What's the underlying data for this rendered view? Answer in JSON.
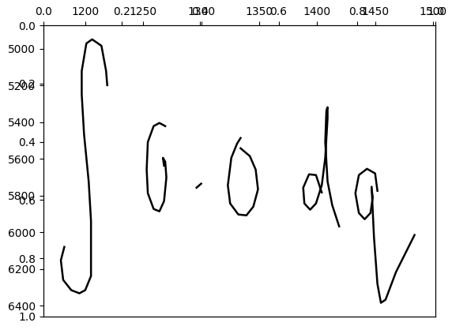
{
  "chart_data": [
    {
      "type": "line",
      "color": "#000000",
      "xlim": [
        1164,
        1502
      ],
      "ylim": [
        6460,
        4871
      ],
      "xticks": [
        1200,
        1250,
        1300,
        1350,
        1400,
        1450,
        1500
      ],
      "yticks": [
        5000,
        5200,
        5400,
        5600,
        5800,
        6000,
        6200,
        6400
      ],
      "series": [
        {
          "x": [
            1219,
            1218,
            1214,
            1206,
            1201,
            1197,
            1197,
            1199,
            1203,
            1205,
            1205,
            1205,
            1200,
            1195,
            1188,
            1181,
            1179,
            1182
          ],
          "values": [
            5198,
            5120,
            4983,
            4948,
            4970,
            5120,
            5249,
            5465,
            5723,
            5938,
            6110,
            6239,
            6316,
            6333,
            6316,
            6260,
            6153,
            6080
          ]
        },
        {
          "x": [
            1269,
            1264,
            1259,
            1254,
            1253,
            1254,
            1259,
            1264,
            1268,
            1270,
            1269,
            1267,
            1268
          ],
          "values": [
            5421,
            5404,
            5421,
            5508,
            5658,
            5787,
            5873,
            5886,
            5830,
            5701,
            5615,
            5594,
            5637
          ]
        },
        {
          "x": [
            1296,
            1300
          ],
          "values": [
            5757,
            5735
          ]
        },
        {
          "x": [
            1334,
            1331,
            1326,
            1323,
            1325,
            1332,
            1339,
            1345,
            1349,
            1347,
            1342,
            1334
          ],
          "values": [
            5486,
            5516,
            5594,
            5744,
            5843,
            5903,
            5908,
            5860,
            5766,
            5658,
            5585,
            5542
          ]
        },
        {
          "x": [
            1404,
            1399,
            1393,
            1388,
            1389,
            1394,
            1399,
            1404,
            1407,
            1409,
            1409,
            1408,
            1407,
            1409,
            1413,
            1419
          ],
          "values": [
            5783,
            5688,
            5684,
            5757,
            5843,
            5877,
            5843,
            5744,
            5594,
            5378,
            5318,
            5335,
            5508,
            5723,
            5852,
            5968
          ]
        },
        {
          "x": [
            1452,
            1450,
            1443,
            1436,
            1433,
            1436,
            1441,
            1446,
            1448,
            1447
          ],
          "values": [
            5774,
            5679,
            5654,
            5688,
            5787,
            5895,
            5929,
            5895,
            5809,
            5766
          ]
        },
        {
          "x": [
            1447,
            1449,
            1452,
            1455,
            1459,
            1468,
            1484
          ],
          "values": [
            5753,
            6024,
            6282,
            6385,
            6368,
            6217,
            6015
          ]
        }
      ]
    },
    {
      "type": "line",
      "xlim": [
        0.0,
        1.0
      ],
      "ylim": [
        1.0,
        0.0
      ],
      "xticks": [
        0.0,
        0.2,
        0.4,
        0.6,
        0.8,
        1.0
      ],
      "yticks": [
        0.0,
        0.2,
        0.4,
        0.6,
        0.8,
        1.0
      ]
    }
  ]
}
